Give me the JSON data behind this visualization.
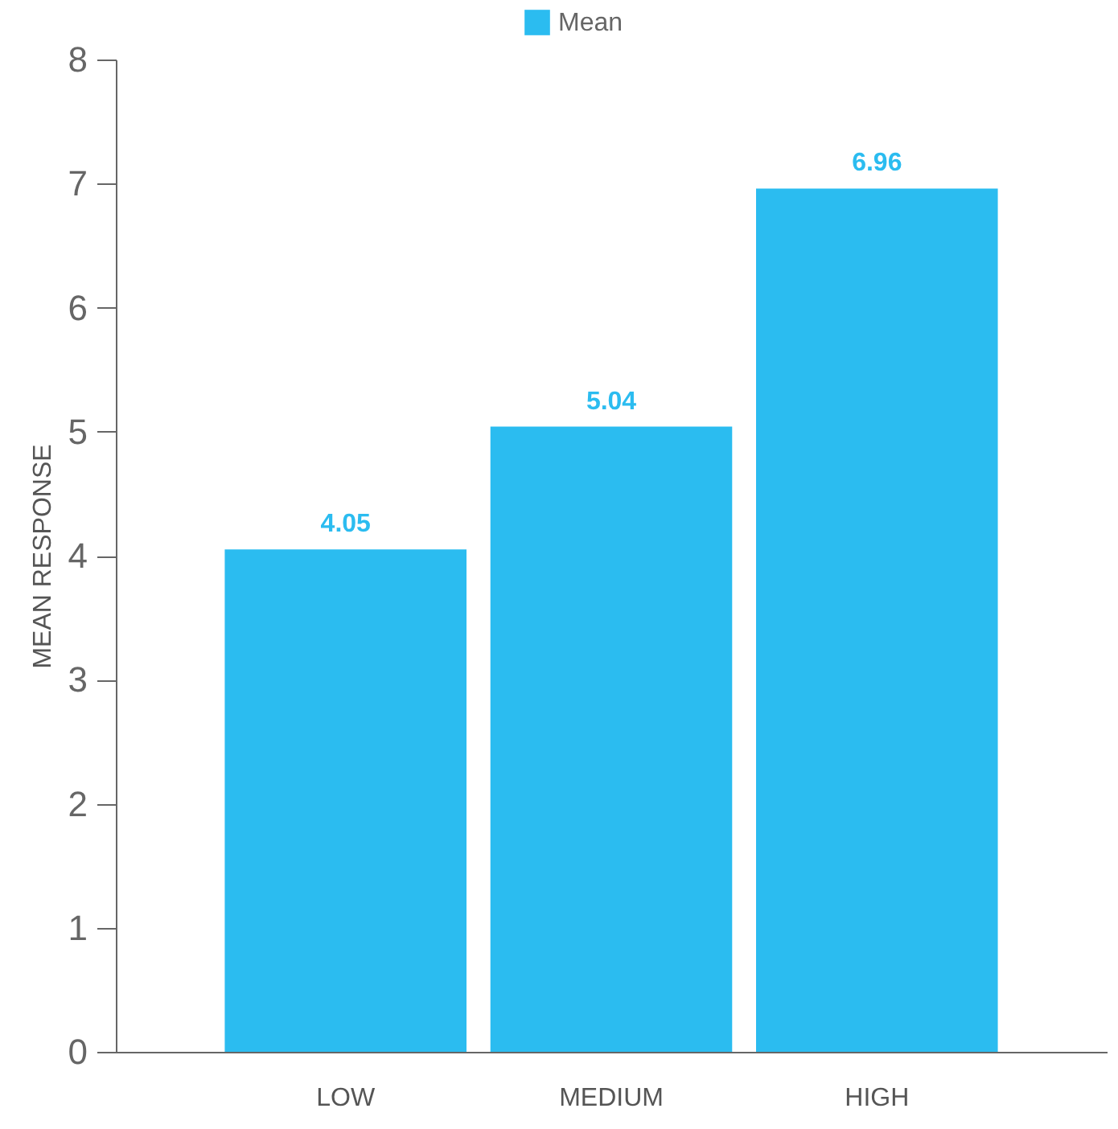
{
  "chart_data": {
    "type": "bar",
    "ylabel": "MEAN RESPONSE",
    "categories": [
      "LOW",
      "MEDIUM",
      "HIGH"
    ],
    "series": [
      {
        "name": "Mean",
        "color": "#2bbcf0",
        "values": [
          4.05,
          5.04,
          6.96
        ]
      }
    ],
    "ylim": [
      0,
      8
    ],
    "yticks": [
      0,
      1,
      2,
      3,
      4,
      5,
      6,
      7,
      8
    ],
    "grid": false,
    "legend": "top",
    "data_labels": true
  }
}
